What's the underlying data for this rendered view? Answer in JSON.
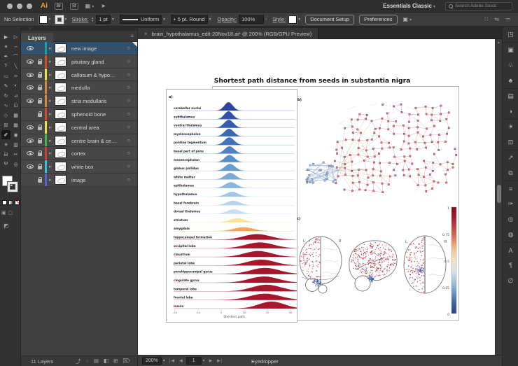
{
  "titlebar": {
    "logo": "Ai",
    "bridge_button": "Br",
    "stock_button": "St",
    "workspace": "Essentials Classic",
    "search_placeholder": "Search Adobe Stock"
  },
  "control_bar": {
    "selection_status": "No Selection",
    "stroke_label": "Stroke:",
    "stroke_value": "1 pt",
    "profile_value": "Uniform",
    "brush_value": "5 pt. Round",
    "opacity_label": "Opacity:",
    "opacity_value": "100%",
    "style_label": "Style:",
    "document_setup_button": "Document Setup",
    "preferences_button": "Preferences"
  },
  "toolbar": {
    "tools": [
      {
        "name": "selection-tool",
        "glyph": "▶"
      },
      {
        "name": "direct-selection-tool",
        "glyph": "▷"
      },
      {
        "name": "magic-wand-tool",
        "glyph": "✶"
      },
      {
        "name": "lasso-tool",
        "glyph": "∽"
      },
      {
        "name": "pen-tool",
        "glyph": "✒"
      },
      {
        "name": "curvature-tool",
        "glyph": "⌒"
      },
      {
        "name": "type-tool",
        "glyph": "T"
      },
      {
        "name": "line-segment-tool",
        "glyph": "╲"
      },
      {
        "name": "rectangle-tool",
        "glyph": "▭"
      },
      {
        "name": "paintbrush-tool",
        "glyph": "✑"
      },
      {
        "name": "pencil-tool",
        "glyph": "✎"
      },
      {
        "name": "shaper-tool",
        "glyph": "◐"
      },
      {
        "name": "rotate-tool",
        "glyph": "↻"
      },
      {
        "name": "scale-tool",
        "glyph": "⊿"
      },
      {
        "name": "width-tool",
        "glyph": "∿"
      },
      {
        "name": "free-transform-tool",
        "glyph": "⊡"
      },
      {
        "name": "shape-builder-tool",
        "glyph": "◇"
      },
      {
        "name": "perspective-grid-tool",
        "glyph": "▩"
      },
      {
        "name": "mesh-tool",
        "glyph": "⊞"
      },
      {
        "name": "gradient-tool",
        "glyph": "▦"
      },
      {
        "name": "eyedropper-tool",
        "glyph": "✐",
        "selected": true
      },
      {
        "name": "blend-tool",
        "glyph": "◉"
      },
      {
        "name": "symbol-sprayer-tool",
        "glyph": "✳"
      },
      {
        "name": "graph-tool",
        "glyph": "▥"
      },
      {
        "name": "artboard-tool",
        "glyph": "⊟"
      },
      {
        "name": "slice-tool",
        "glyph": "✂"
      },
      {
        "name": "hand-tool",
        "glyph": "Ψ"
      },
      {
        "name": "zoom-tool",
        "glyph": "◎"
      }
    ]
  },
  "layers_panel": {
    "title": "Layers",
    "menu_icon": "≡",
    "rows": [
      {
        "name": "new image",
        "color": "#17a2a0",
        "eye": true,
        "lock": false,
        "selected": true
      },
      {
        "name": "pituitary gland",
        "color": "#d2492f",
        "eye": true,
        "lock": true
      },
      {
        "name": "callosum & hypo…",
        "color": "#e9e04b",
        "eye": true,
        "lock": true
      },
      {
        "name": "medulla",
        "color": "#d78a35",
        "eye": true,
        "lock": true
      },
      {
        "name": "stria medullaris",
        "color": "#d78a35",
        "eye": true,
        "lock": true
      },
      {
        "name": "sphenoid bone",
        "color": "#d2492f",
        "eye": false,
        "lock": true
      },
      {
        "name": "central area",
        "color": "#e9e04b",
        "eye": true,
        "lock": true
      },
      {
        "name": "centre brain & ce…",
        "color": "#47b64e",
        "eye": true,
        "lock": true
      },
      {
        "name": "cortex",
        "color": "#d63a3a",
        "eye": true,
        "lock": true
      },
      {
        "name": "white box",
        "color": "#33c3dd",
        "eye": true,
        "lock": true
      },
      {
        "name": "image",
        "color": "#5a60d8",
        "eye": false,
        "lock": true
      }
    ],
    "footer_count": "11 Layers",
    "footer_icons": [
      "⤴",
      "◌",
      "▤",
      "◧",
      "⊞",
      "⌦"
    ]
  },
  "document": {
    "close_glyph": "×",
    "tab_title": "brain_hypothalamus_edit-20Nov18.ai* @ 200% (RGB/GPU Preview)",
    "status": {
      "zoom": "200%",
      "artboard_number": "1",
      "active_tool": "Eyedropper"
    }
  },
  "dock_icons": [
    {
      "name": "artboards-panel-icon",
      "glyph": "◳",
      "grp": true
    },
    {
      "name": "links-panel-icon",
      "glyph": "▣",
      "grp": true
    },
    {
      "name": "libraries-panel-icon",
      "glyph": "♧"
    },
    {
      "name": "symbols-panel-icon",
      "glyph": "♣"
    },
    {
      "name": "swatches-panel-icon",
      "glyph": "▤",
      "grp": true
    },
    {
      "name": "gradient-panel-icon",
      "glyph": "◑"
    },
    {
      "name": "color-panel-icon",
      "glyph": "☀",
      "grp": true
    },
    {
      "name": "transform-panel-icon",
      "glyph": "⊡"
    },
    {
      "name": "export-panel-icon",
      "glyph": "↗",
      "grp": true
    },
    {
      "name": "arrange-panel-icon",
      "glyph": "⧉"
    },
    {
      "name": "stroke-panel-icon",
      "glyph": "≡",
      "grp": true
    },
    {
      "name": "brushes-panel-icon",
      "glyph": "✑"
    },
    {
      "name": "appearance-panel-icon",
      "glyph": "◎"
    },
    {
      "name": "graphic-styles-panel-icon",
      "glyph": "◍"
    },
    {
      "name": "character-panel-icon",
      "glyph": "A",
      "grp": true
    },
    {
      "name": "paragraph-panel-icon",
      "glyph": "¶"
    },
    {
      "name": "opacity-panel-icon",
      "glyph": "∅"
    }
  ],
  "figure": {
    "title": "Shortest path distance from seeds in substantia nigra",
    "panel_labels": {
      "a": "a)",
      "b": "b)",
      "c": "c)"
    },
    "hemisphere_labels": {
      "left": "L",
      "right": "R"
    },
    "colorbar": {
      "ticks": [
        "1",
        "0.75",
        "0.5",
        "0.25",
        "0"
      ]
    },
    "chart_data": {
      "type": "ridgeline",
      "title": "Shortest path distance from seeds in substantia nigra",
      "xlabel": "Shortest path",
      "x_ticks": [
        -20,
        -10,
        0,
        10,
        20,
        30
      ],
      "xlim": [
        -26,
        33
      ],
      "rows": [
        {
          "label": "cerebellar nuclei",
          "color": "#27419b",
          "center": 3.2,
          "sigma": 1.8,
          "amp": 12
        },
        {
          "label": "subthalamus",
          "color": "#2a4aa3",
          "center": 3.2,
          "sigma": 1.8,
          "amp": 11.5
        },
        {
          "label": "ventral thalamus",
          "color": "#2f57ab",
          "center": 3.3,
          "sigma": 2.0,
          "amp": 11.5
        },
        {
          "label": "myelencephalon",
          "color": "#3463b2",
          "center": 3.4,
          "sigma": 2.0,
          "amp": 11
        },
        {
          "label": "pontine tegmentum",
          "color": "#3d70b9",
          "center": 3.5,
          "sigma": 2.1,
          "amp": 11
        },
        {
          "label": "basal part of pons",
          "color": "#477dc0",
          "center": 3.6,
          "sigma": 2.1,
          "amp": 10.5
        },
        {
          "label": "mesencephalon",
          "color": "#538bc7",
          "center": 3.6,
          "sigma": 2.1,
          "amp": 10.5
        },
        {
          "label": "globus pallidus",
          "color": "#6299ce",
          "center": 3.8,
          "sigma": 2.2,
          "amp": 10
        },
        {
          "label": "white matter",
          "color": "#74a7d5",
          "center": 3.9,
          "sigma": 2.3,
          "amp": 9.5
        },
        {
          "label": "epithalamus",
          "color": "#88b5dc",
          "center": 4.2,
          "sigma": 2.5,
          "amp": 8.5
        },
        {
          "label": "hypothalamus",
          "color": "#9fc4e4",
          "center": 4.8,
          "sigma": 2.7,
          "amp": 7
        },
        {
          "label": "basal forebrain",
          "color": "#b5d3eb",
          "center": 5.2,
          "sigma": 2.9,
          "amp": 6.5
        },
        {
          "label": "dorsal thalamus",
          "color": "#c6ddef",
          "center": 5.5,
          "sigma": 3.0,
          "amp": 6.5
        },
        {
          "label": "striatum",
          "color": "#fbe39b",
          "center": 7.0,
          "sigma": 3.3,
          "amp": 6
        },
        {
          "label": "amygdala",
          "color": "#f5a054",
          "center": 9.7,
          "sigma": 4.2,
          "amp": 5.5
        },
        {
          "label": "hippocampal formation",
          "color": "#a31027",
          "center": 15.5,
          "sigma": 5.8,
          "amp": 8
        },
        {
          "label": "occipital lobe",
          "color": "#a31027",
          "center": 16.7,
          "sigma": 6.0,
          "amp": 8.5
        },
        {
          "label": "claustrum",
          "color": "#a31027",
          "center": 16.0,
          "sigma": 5.8,
          "amp": 8.5
        },
        {
          "label": "parietal lobe",
          "color": "#a31027",
          "center": 17.3,
          "sigma": 6.0,
          "amp": 8.5
        },
        {
          "label": "parahippocampal gyrus",
          "color": "#a31027",
          "center": 19.0,
          "sigma": 6.3,
          "amp": 9
        },
        {
          "label": "cingulate gyrus",
          "color": "#a31027",
          "center": 18.5,
          "sigma": 6.3,
          "amp": 9
        },
        {
          "label": "temporal lobe",
          "color": "#a31027",
          "center": 19.7,
          "sigma": 6.3,
          "amp": 9.5
        },
        {
          "label": "frontal lobe",
          "color": "#a31027",
          "center": 19.0,
          "sigma": 6.6,
          "amp": 9
        },
        {
          "label": "insula",
          "color": "#a31027",
          "center": 21.8,
          "sigma": 5.5,
          "amp": 10
        }
      ]
    },
    "network": {
      "seed": 42,
      "red_node_color": "#d7929c",
      "red_node_stroke": "#9e2235",
      "red_edge_color": "#c79097",
      "blue_node_color": "#bcc9de",
      "blue_node_stroke": "#41659f",
      "blue_edge_color": "#93a9c9",
      "fan_edge_color": "#cdc5b2",
      "blue_cluster_nodes": 26
    },
    "brains": {
      "seed": 7,
      "red_dot_colors": [
        "#b32638",
        "#c14a52",
        "#9c1528",
        "#d4767c"
      ],
      "blue_dot_colors": [
        "#3f63a8",
        "#6e93c4",
        "#2b4a8f"
      ],
      "outline_color": "#777777"
    },
    "colorbar_gradient": [
      "#7d0c20",
      "#a21d31",
      "#c24a44",
      "#e08159",
      "#f3c690",
      "#f2e3c0",
      "#d5e3ea",
      "#a5c6de",
      "#6e97c6",
      "#41649f",
      "#2a3f8f"
    ]
  }
}
